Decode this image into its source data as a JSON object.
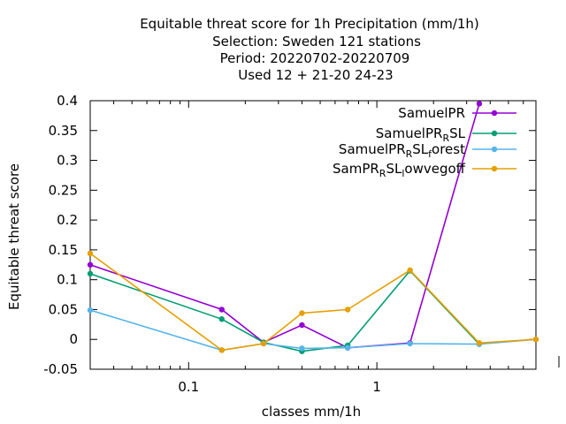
{
  "chart_data": {
    "type": "line",
    "title_lines": [
      "Equitable threat score  for 1h Precipitation (mm/1h)",
      "Selection: Sweden    121 stations",
      "Period: 20220702-20220709",
      "Used  12 + 21-20 24-23"
    ],
    "xlabel": "classes mm/1h",
    "ylabel": "Equitable threat score",
    "xscale": "log",
    "xlim": [
      0.03,
      7
    ],
    "ylim": [
      -0.05,
      0.4
    ],
    "x_ticks": [
      {
        "value": 0.1,
        "label": "0.1"
      },
      {
        "value": 1,
        "label": "1"
      }
    ],
    "y_ticks": [
      {
        "value": -0.05,
        "label": "-0.05"
      },
      {
        "value": 0,
        "label": "0"
      },
      {
        "value": 0.05,
        "label": "0.05"
      },
      {
        "value": 0.1,
        "label": "0.1"
      },
      {
        "value": 0.15,
        "label": "0.15"
      },
      {
        "value": 0.2,
        "label": "0.2"
      },
      {
        "value": 0.25,
        "label": "0.25"
      },
      {
        "value": 0.3,
        "label": "0.3"
      },
      {
        "value": 0.35,
        "label": "0.35"
      },
      {
        "value": 0.4,
        "label": "0.4"
      }
    ],
    "grid": false,
    "legend_position": "top-right",
    "series": [
      {
        "name": "SamuelPR",
        "legend_parts": [
          {
            "text": "SamuelPR",
            "sub": false
          }
        ],
        "color": "#9400d3",
        "x": [
          0.03,
          0.15,
          0.25,
          0.4,
          0.7,
          1.5,
          3.5
        ],
        "y": [
          0.125,
          0.05,
          -0.005,
          0.024,
          -0.014,
          -0.006,
          0.395
        ]
      },
      {
        "name": "SamuelPR_RSL",
        "legend_parts": [
          {
            "text": "SamuelPR",
            "sub": false
          },
          {
            "text": "R",
            "sub": true
          },
          {
            "text": "SL",
            "sub": false
          }
        ],
        "color": "#009e73",
        "x": [
          0.03,
          0.15,
          0.25,
          0.4,
          0.7,
          1.5,
          3.5
        ],
        "y": [
          0.11,
          0.034,
          -0.005,
          -0.02,
          -0.01,
          0.115,
          -0.008
        ]
      },
      {
        "name": "SamuelPR_RSL_forest",
        "legend_parts": [
          {
            "text": "SamuelPR",
            "sub": false
          },
          {
            "text": "R",
            "sub": true
          },
          {
            "text": "SL",
            "sub": false
          },
          {
            "text": "f",
            "sub": true
          },
          {
            "text": "orest",
            "sub": false
          }
        ],
        "color": "#56b4e9",
        "x": [
          0.03,
          0.15,
          0.25,
          0.4,
          0.7,
          1.5,
          3.5,
          7
        ],
        "y": [
          0.049,
          -0.018,
          -0.007,
          -0.015,
          -0.014,
          -0.007,
          -0.008,
          0.0
        ]
      },
      {
        "name": "SamPR_RSL_lowvegoff",
        "legend_parts": [
          {
            "text": "SamPR",
            "sub": false
          },
          {
            "text": "R",
            "sub": true
          },
          {
            "text": "SL",
            "sub": false
          },
          {
            "text": "l",
            "sub": true
          },
          {
            "text": "owvegoff",
            "sub": false
          }
        ],
        "color": "#e69f00",
        "x": [
          0.03,
          0.15,
          0.25,
          0.4,
          0.7,
          1.5,
          3.5,
          7
        ],
        "y": [
          0.144,
          -0.018,
          -0.007,
          0.044,
          0.05,
          0.116,
          -0.006,
          0.0
        ]
      }
    ]
  }
}
